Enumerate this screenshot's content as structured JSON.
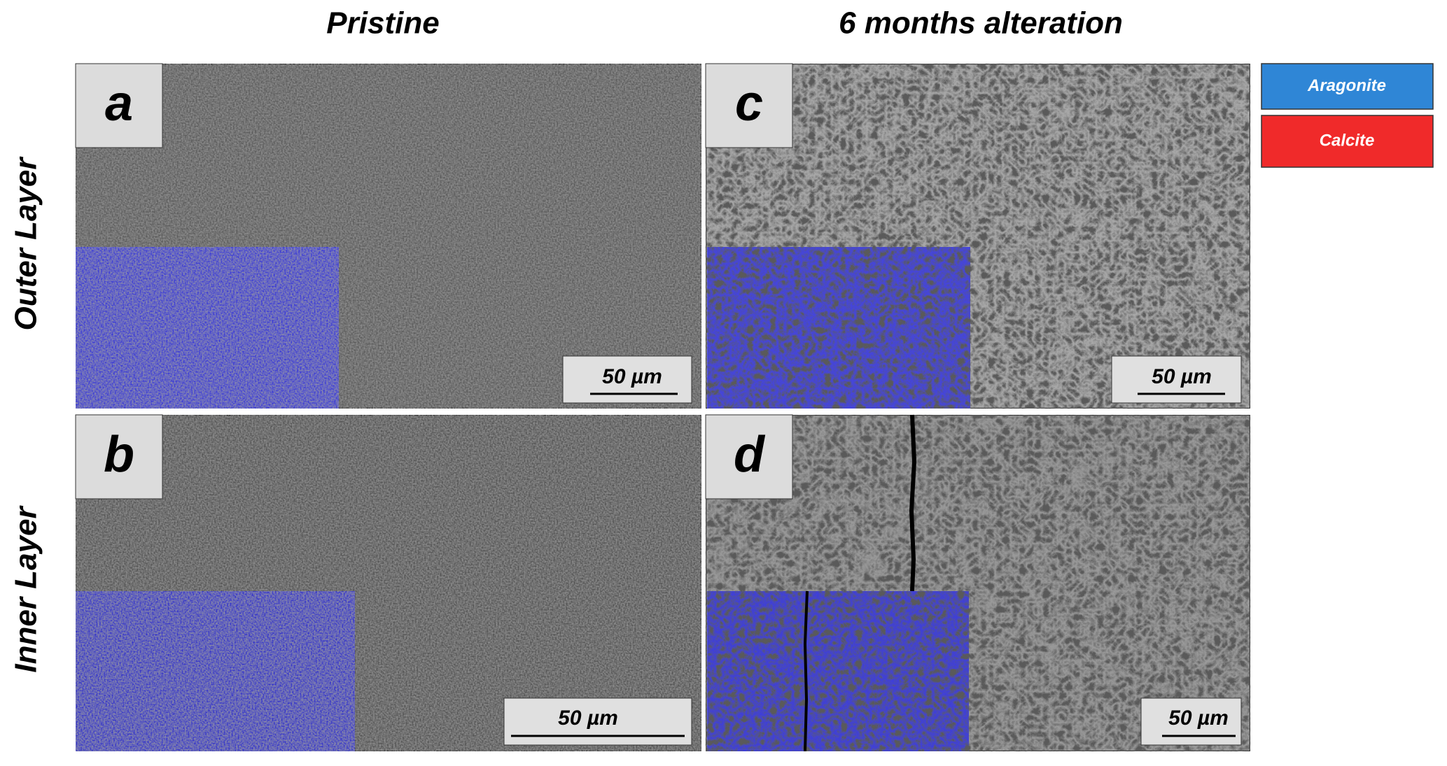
{
  "columns": [
    "Pristine",
    "6 months alteration"
  ],
  "rows": [
    "Outer Layer",
    "Inner Layer"
  ],
  "panels": [
    {
      "letter": "a",
      "scale_bar": "50 µm"
    },
    {
      "letter": "b",
      "scale_bar": "50 µm"
    },
    {
      "letter": "c",
      "scale_bar": "50 µm"
    },
    {
      "letter": "d",
      "scale_bar": "50 µm"
    }
  ],
  "legend": [
    {
      "label": "Aragonite",
      "color": "#2f86d6"
    },
    {
      "label": "Calcite",
      "color": "#f02a2a"
    }
  ]
}
